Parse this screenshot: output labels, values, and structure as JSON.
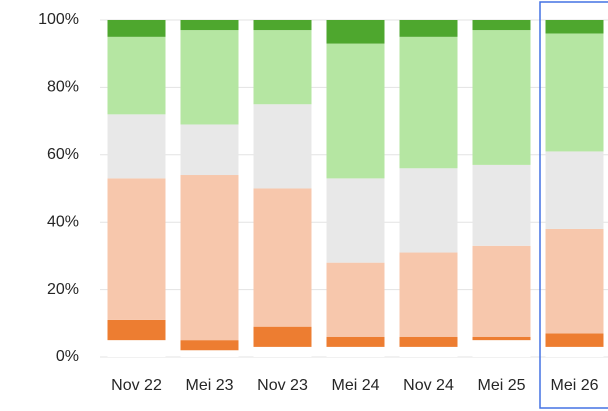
{
  "chart_data": {
    "type": "stacked_bar",
    "categories": [
      "Nov 22",
      "Mei 23",
      "Nov 23",
      "Mei 24",
      "Nov 24",
      "Mei 25",
      "Mei 26"
    ],
    "series": [
      {
        "color": "#ffffff",
        "values": [
          5,
          2,
          3,
          3,
          3,
          5,
          3
        ]
      },
      {
        "color": "#ed7d31",
        "values": [
          6,
          3,
          6,
          3,
          3,
          1,
          4
        ]
      },
      {
        "color": "#f7c7ac",
        "values": [
          42,
          49,
          41,
          22,
          25,
          27,
          31
        ]
      },
      {
        "color": "#e8e8e8",
        "values": [
          19,
          15,
          25,
          25,
          25,
          24,
          23
        ]
      },
      {
        "color": "#b5e6a2",
        "values": [
          23,
          28,
          22,
          40,
          39,
          40,
          35
        ]
      },
      {
        "color": "#4ea72e",
        "values": [
          5,
          3,
          3,
          7,
          5,
          3,
          4
        ]
      }
    ],
    "ylim": [
      0,
      100
    ],
    "yticks": [
      {
        "value": 0,
        "label": "0%"
      },
      {
        "value": 20,
        "label": "20%"
      },
      {
        "value": 40,
        "label": "40%"
      },
      {
        "value": 60,
        "label": "60%"
      },
      {
        "value": 80,
        "label": "80%"
      },
      {
        "value": 100,
        "label": "100%"
      }
    ],
    "grid": true
  }
}
